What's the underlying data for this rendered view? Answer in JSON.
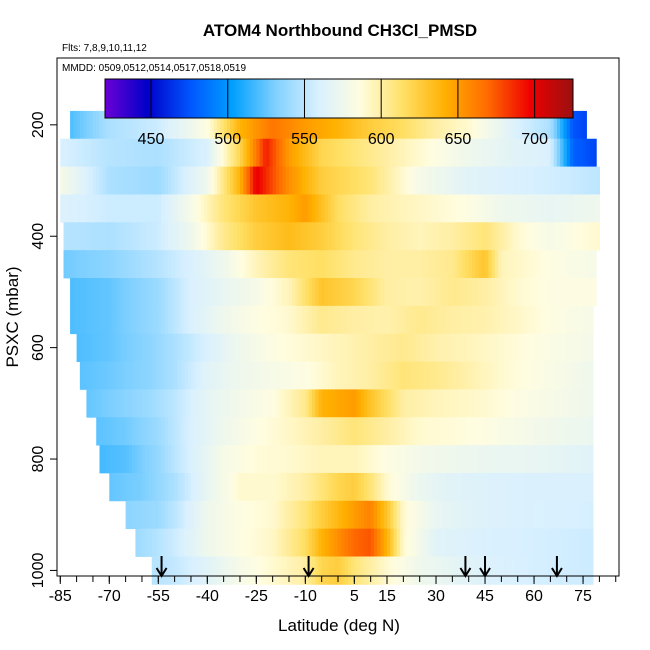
{
  "chart_data": {
    "type": "heatmap",
    "title": "ATOM4 Northbound CH3Cl_PMSD",
    "notes": [
      "Flts: 7,8,9,10,11,12",
      "MMDD: 0509,0512,0514,0517,0518,0519"
    ],
    "xlabel": "Latitude (deg N)",
    "ylabel": "PSXC (mbar)",
    "xlim": [
      -86,
      86
    ],
    "ylim": [
      1010,
      80
    ],
    "x_ticks": [
      -85,
      -70,
      -55,
      -40,
      -25,
      -10,
      5,
      15,
      30,
      45,
      60,
      75
    ],
    "y_ticks": [
      200,
      400,
      600,
      800,
      1000
    ],
    "colorbar": {
      "min": 420,
      "max": 725,
      "ticks": [
        450,
        500,
        550,
        600,
        650,
        700
      ],
      "stops": [
        "#6b00d6",
        "#0000c8",
        "#0055ff",
        "#00a0ff",
        "#7fd0ff",
        "#d8f0ff",
        "#fffde0",
        "#ffe066",
        "#ffb000",
        "#ff6a00",
        "#ee0000",
        "#9a1010"
      ]
    },
    "flight_markers_latitude": [
      -54,
      -9,
      39,
      45,
      67
    ],
    "pressure_levels_mbar": [
      200,
      250,
      300,
      350,
      400,
      450,
      500,
      550,
      600,
      650,
      700,
      750,
      800,
      850,
      900,
      950,
      1000
    ],
    "row_lat_ranges": [
      [
        -82,
        76
      ],
      [
        -85,
        79
      ],
      [
        -85,
        80
      ],
      [
        -85,
        80
      ],
      [
        -84,
        80
      ],
      [
        -84,
        79
      ],
      [
        -82,
        79
      ],
      [
        -82,
        78
      ],
      [
        -80,
        78
      ],
      [
        -79,
        78
      ],
      [
        -77,
        78
      ],
      [
        -74,
        78
      ],
      [
        -73,
        78
      ],
      [
        -70,
        78
      ],
      [
        -65,
        78
      ],
      [
        -62,
        78
      ],
      [
        -57,
        78
      ]
    ],
    "row_profiles": [
      [
        [
          -82,
          520
        ],
        [
          -70,
          545
        ],
        [
          -55,
          555
        ],
        [
          -40,
          585
        ],
        [
          -30,
          640
        ],
        [
          -20,
          665
        ],
        [
          -10,
          650
        ],
        [
          0,
          640
        ],
        [
          10,
          625
        ],
        [
          20,
          615
        ],
        [
          30,
          600
        ],
        [
          40,
          590
        ],
        [
          55,
          560
        ],
        [
          65,
          545
        ],
        [
          72,
          475
        ],
        [
          76,
          470
        ]
      ],
      [
        [
          -85,
          560
        ],
        [
          -70,
          548
        ],
        [
          -55,
          545
        ],
        [
          -40,
          560
        ],
        [
          -30,
          620
        ],
        [
          -22,
          690
        ],
        [
          -15,
          650
        ],
        [
          -5,
          620
        ],
        [
          10,
          605
        ],
        [
          25,
          590
        ],
        [
          40,
          575
        ],
        [
          55,
          565
        ],
        [
          65,
          560
        ],
        [
          72,
          480
        ],
        [
          79,
          470
        ]
      ],
      [
        [
          -85,
          580
        ],
        [
          -70,
          545
        ],
        [
          -55,
          540
        ],
        [
          -40,
          575
        ],
        [
          -30,
          640
        ],
        [
          -25,
          700
        ],
        [
          -15,
          655
        ],
        [
          -5,
          625
        ],
        [
          10,
          610
        ],
        [
          25,
          580
        ],
        [
          40,
          565
        ],
        [
          55,
          560
        ],
        [
          70,
          555
        ],
        [
          80,
          550
        ]
      ],
      [
        [
          -85,
          562
        ],
        [
          -70,
          555
        ],
        [
          -55,
          555
        ],
        [
          -45,
          580
        ],
        [
          -35,
          610
        ],
        [
          -25,
          630
        ],
        [
          -15,
          640
        ],
        [
          -10,
          650
        ],
        [
          0,
          615
        ],
        [
          10,
          600
        ],
        [
          20,
          595
        ],
        [
          30,
          590
        ],
        [
          40,
          585
        ],
        [
          50,
          575
        ],
        [
          65,
          570
        ],
        [
          80,
          575
        ]
      ],
      [
        [
          -84,
          548
        ],
        [
          -70,
          545
        ],
        [
          -55,
          555
        ],
        [
          -45,
          575
        ],
        [
          -35,
          605
        ],
        [
          -25,
          625
        ],
        [
          -15,
          635
        ],
        [
          -5,
          625
        ],
        [
          5,
          610
        ],
        [
          15,
          600
        ],
        [
          25,
          595
        ],
        [
          35,
          600
        ],
        [
          45,
          610
        ],
        [
          55,
          590
        ],
        [
          65,
          580
        ],
        [
          79,
          590
        ]
      ],
      [
        [
          -84,
          528
        ],
        [
          -70,
          535
        ],
        [
          -55,
          548
        ],
        [
          -45,
          560
        ],
        [
          -35,
          575
        ],
        [
          -25,
          595
        ],
        [
          -15,
          610
        ],
        [
          -5,
          615
        ],
        [
          5,
          605
        ],
        [
          15,
          600
        ],
        [
          25,
          600
        ],
        [
          35,
          605
        ],
        [
          45,
          630
        ],
        [
          50,
          595
        ],
        [
          65,
          585
        ],
        [
          79,
          580
        ]
      ],
      [
        [
          -82,
          520
        ],
        [
          -70,
          525
        ],
        [
          -55,
          540
        ],
        [
          -45,
          560
        ],
        [
          -35,
          570
        ],
        [
          -25,
          580
        ],
        [
          -15,
          595
        ],
        [
          -5,
          630
        ],
        [
          5,
          620
        ],
        [
          15,
          600
        ],
        [
          25,
          598
        ],
        [
          35,
          605
        ],
        [
          45,
          600
        ],
        [
          55,
          590
        ],
        [
          65,
          585
        ],
        [
          78,
          585
        ]
      ],
      [
        [
          -82,
          520
        ],
        [
          -70,
          525
        ],
        [
          -55,
          540
        ],
        [
          -45,
          560
        ],
        [
          -35,
          575
        ],
        [
          -25,
          585
        ],
        [
          -15,
          590
        ],
        [
          -5,
          605
        ],
        [
          5,
          600
        ],
        [
          15,
          598
        ],
        [
          25,
          605
        ],
        [
          35,
          600
        ],
        [
          45,
          598
        ],
        [
          55,
          592
        ],
        [
          65,
          585
        ],
        [
          78,
          580
        ]
      ],
      [
        [
          -80,
          520
        ],
        [
          -70,
          525
        ],
        [
          -58,
          535
        ],
        [
          -50,
          545
        ],
        [
          -40,
          560
        ],
        [
          -30,
          575
        ],
        [
          -20,
          585
        ],
        [
          -10,
          590
        ],
        [
          0,
          595
        ],
        [
          10,
          600
        ],
        [
          20,
          605
        ],
        [
          30,
          598
        ],
        [
          40,
          595
        ],
        [
          50,
          590
        ],
        [
          65,
          583
        ],
        [
          78,
          578
        ]
      ],
      [
        [
          -79,
          523
        ],
        [
          -70,
          527
        ],
        [
          -58,
          535
        ],
        [
          -50,
          545
        ],
        [
          -40,
          565
        ],
        [
          -30,
          575
        ],
        [
          -20,
          580
        ],
        [
          -10,
          585
        ],
        [
          0,
          595
        ],
        [
          10,
          600
        ],
        [
          20,
          610
        ],
        [
          30,
          605
        ],
        [
          40,
          598
        ],
        [
          50,
          590
        ],
        [
          65,
          582
        ],
        [
          78,
          575
        ]
      ],
      [
        [
          -77,
          525
        ],
        [
          -70,
          530
        ],
        [
          -58,
          540
        ],
        [
          -50,
          550
        ],
        [
          -40,
          568
        ],
        [
          -30,
          578
        ],
        [
          -20,
          585
        ],
        [
          -10,
          605
        ],
        [
          -5,
          640
        ],
        [
          5,
          650
        ],
        [
          10,
          630
        ],
        [
          20,
          600
        ],
        [
          30,
          595
        ],
        [
          45,
          590
        ],
        [
          60,
          582
        ],
        [
          78,
          575
        ]
      ],
      [
        [
          -74,
          523
        ],
        [
          -65,
          528
        ],
        [
          -55,
          540
        ],
        [
          -45,
          560
        ],
        [
          -35,
          575
        ],
        [
          -25,
          585
        ],
        [
          -15,
          592
        ],
        [
          -5,
          600
        ],
        [
          5,
          610
        ],
        [
          15,
          600
        ],
        [
          25,
          590
        ],
        [
          35,
          588
        ],
        [
          45,
          585
        ],
        [
          60,
          578
        ],
        [
          78,
          572
        ]
      ],
      [
        [
          -73,
          518
        ],
        [
          -65,
          522
        ],
        [
          -55,
          538
        ],
        [
          -45,
          560
        ],
        [
          -35,
          580
        ],
        [
          -25,
          588
        ],
        [
          -15,
          590
        ],
        [
          -5,
          595
        ],
        [
          5,
          595
        ],
        [
          15,
          585
        ],
        [
          25,
          578
        ],
        [
          35,
          575
        ],
        [
          45,
          572
        ],
        [
          60,
          570
        ],
        [
          78,
          565
        ]
      ],
      [
        [
          -70,
          525
        ],
        [
          -60,
          530
        ],
        [
          -50,
          545
        ],
        [
          -40,
          570
        ],
        [
          -30,
          590
        ],
        [
          -20,
          590
        ],
        [
          -10,
          600
        ],
        [
          0,
          620
        ],
        [
          5,
          625
        ],
        [
          10,
          610
        ],
        [
          15,
          590
        ],
        [
          25,
          572
        ],
        [
          35,
          565
        ],
        [
          45,
          562
        ],
        [
          60,
          560
        ],
        [
          78,
          560
        ]
      ],
      [
        [
          -65,
          535
        ],
        [
          -55,
          540
        ],
        [
          -50,
          550
        ],
        [
          -40,
          575
        ],
        [
          -30,
          585
        ],
        [
          -20,
          590
        ],
        [
          -10,
          610
        ],
        [
          -5,
          625
        ],
        [
          5,
          650
        ],
        [
          10,
          660
        ],
        [
          15,
          630
        ],
        [
          20,
          590
        ],
        [
          30,
          570
        ],
        [
          45,
          562
        ],
        [
          60,
          560
        ],
        [
          78,
          558
        ]
      ],
      [
        [
          -62,
          540
        ],
        [
          -55,
          548
        ],
        [
          -50,
          555
        ],
        [
          -40,
          575
        ],
        [
          -30,
          585
        ],
        [
          -20,
          592
        ],
        [
          -10,
          615
        ],
        [
          -5,
          640
        ],
        [
          5,
          670
        ],
        [
          10,
          675
        ],
        [
          15,
          640
        ],
        [
          20,
          590
        ],
        [
          30,
          565
        ],
        [
          45,
          560
        ],
        [
          60,
          558
        ],
        [
          78,
          555
        ]
      ],
      [
        [
          -57,
          548
        ],
        [
          -50,
          552
        ],
        [
          -40,
          565
        ],
        [
          -30,
          580
        ],
        [
          -20,
          590
        ],
        [
          -10,
          600
        ],
        [
          -5,
          620
        ],
        [
          0,
          625
        ],
        [
          5,
          610
        ],
        [
          15,
          590
        ],
        [
          25,
          575
        ],
        [
          35,
          568
        ],
        [
          45,
          562
        ],
        [
          60,
          558
        ],
        [
          78,
          555
        ]
      ]
    ]
  }
}
